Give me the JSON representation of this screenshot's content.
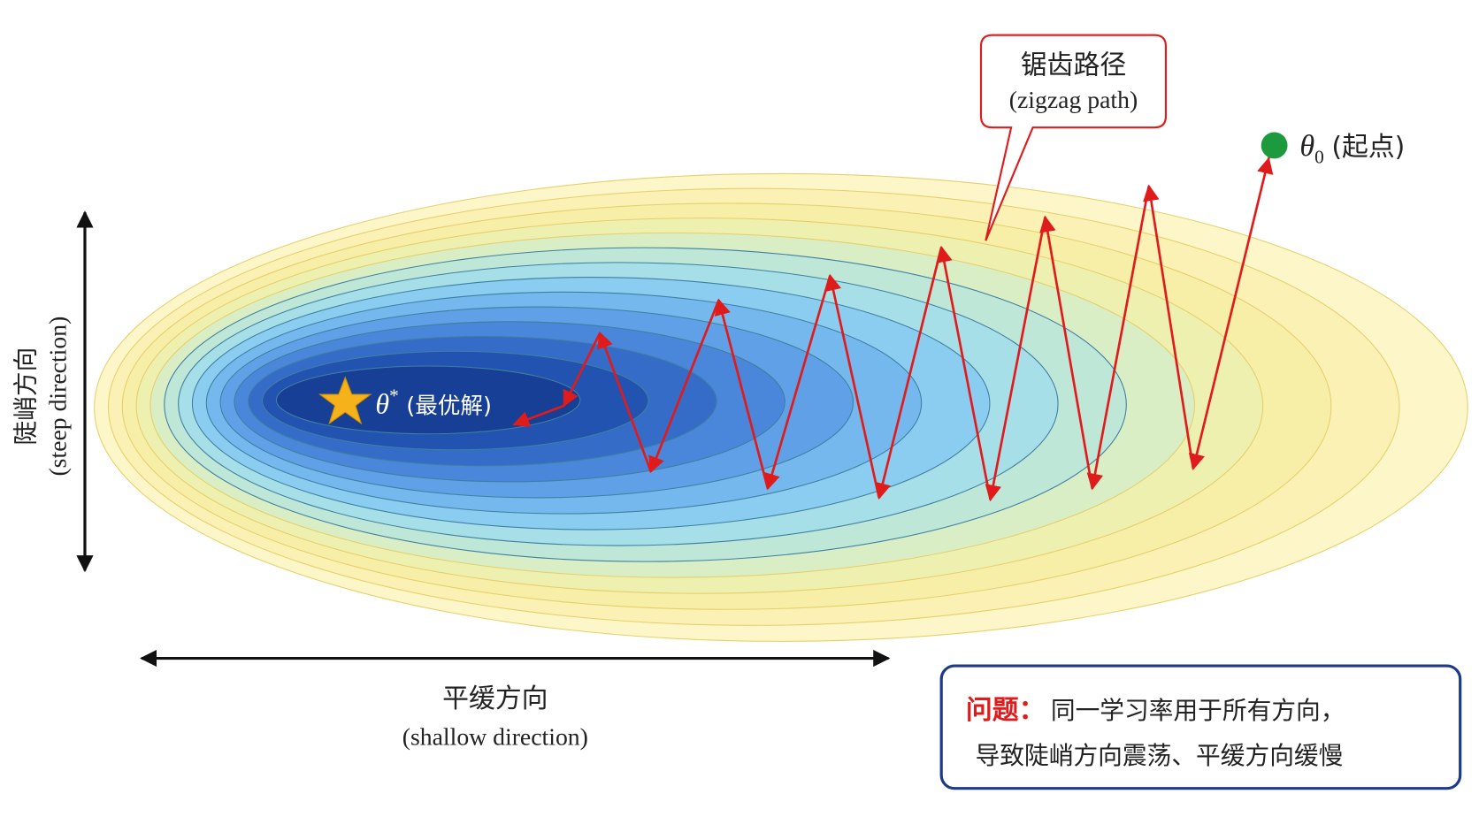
{
  "callout": {
    "title": "锯齿路径",
    "subtitle": "(zigzag path)"
  },
  "start": {
    "symbol": "θ",
    "subscript": "0",
    "label": "(起点)"
  },
  "optimum": {
    "symbol": "θ",
    "superscript": "*",
    "label": "(最优解)"
  },
  "steep_axis": {
    "title": "陡峭方向",
    "subtitle": "(steep direction)"
  },
  "shallow_axis": {
    "title": "平缓方向",
    "subtitle": "(shallow direction)"
  },
  "problem": {
    "heading": "问题：",
    "lines": [
      "同一学习率用于所有方向，",
      "导致陡峭方向震荡、平缓方向缓慢"
    ]
  }
}
